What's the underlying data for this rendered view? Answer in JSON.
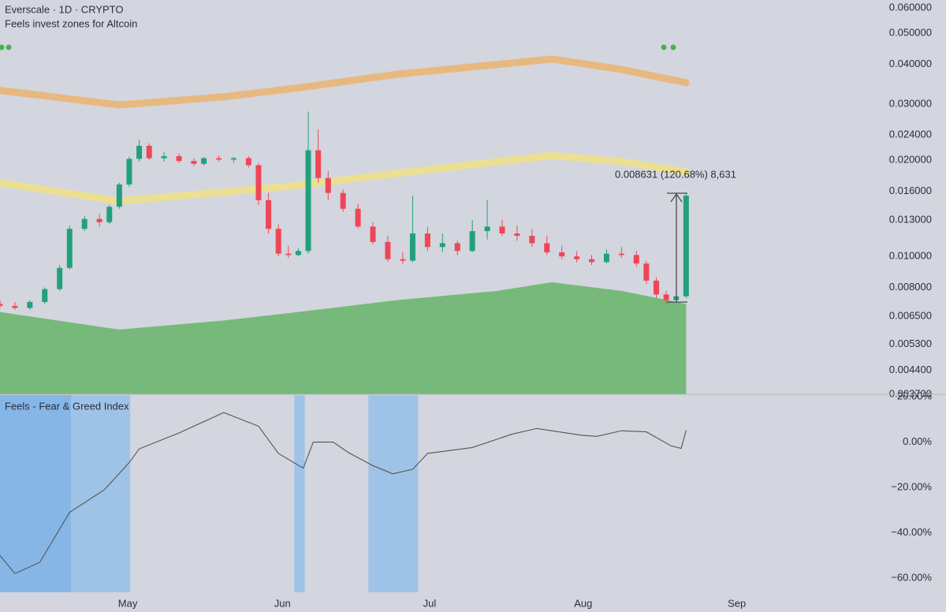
{
  "chart_data": [
    {
      "type": "candlestick",
      "title": "Everscale · 1D · CRYPTO",
      "subtitle": "Feels invest zones for Altcoin",
      "log_scale": true,
      "xlim": [
        0,
        176
      ],
      "ylim": [
        0.0037,
        0.06
      ],
      "yticks": [
        {
          "value": 0.06,
          "label": "0.060000"
        },
        {
          "value": 0.05,
          "label": "0.050000"
        },
        {
          "value": 0.04,
          "label": "0.040000"
        },
        {
          "value": 0.03,
          "label": "0.030000"
        },
        {
          "value": 0.024,
          "label": "0.024000"
        },
        {
          "value": 0.02,
          "label": "0.020000"
        },
        {
          "value": 0.016,
          "label": "0.016000"
        },
        {
          "value": 0.013,
          "label": "0.013000"
        },
        {
          "value": 0.01,
          "label": "0.010000"
        },
        {
          "value": 0.008,
          "label": "0.008000"
        },
        {
          "value": 0.0065,
          "label": "0.006500"
        },
        {
          "value": 0.0053,
          "label": "0.005300"
        },
        {
          "value": 0.0044,
          "label": "0.004400"
        },
        {
          "value": 0.0037,
          "label": "0.003700"
        }
      ],
      "up_color": "#22a07e",
      "down_color": "#ef4657",
      "x": [
        0,
        3,
        6,
        9,
        12,
        14,
        17,
        20,
        22,
        24,
        26,
        28,
        30,
        33,
        36,
        39,
        41,
        44,
        47,
        50,
        52,
        54,
        56,
        58,
        60,
        62,
        64,
        66,
        69,
        72,
        75,
        78,
        81,
        83,
        86,
        89,
        92,
        95,
        98,
        101,
        104,
        107,
        110,
        113,
        116,
        119,
        122,
        125,
        128,
        130,
        132,
        134,
        136,
        138
      ],
      "open": [
        0.0071,
        0.007,
        0.0069,
        0.0072,
        0.0079,
        0.0092,
        0.0122,
        0.0131,
        0.0128,
        0.0143,
        0.0168,
        0.0202,
        0.0222,
        0.0203,
        0.0206,
        0.0199,
        0.0195,
        0.0203,
        0.0201,
        0.0203,
        0.0193,
        0.015,
        0.0122,
        0.0102,
        0.0101,
        0.0104,
        0.0215,
        0.0176,
        0.0158,
        0.0141,
        0.0124,
        0.0111,
        0.0098,
        0.0097,
        0.0118,
        0.0107,
        0.011,
        0.0104,
        0.012,
        0.0124,
        0.0118,
        0.0116,
        0.011,
        0.0103,
        0.01,
        0.0098,
        0.0096,
        0.0102,
        0.0101,
        0.0095,
        0.0084,
        0.0076,
        0.0073,
        0.0075
      ],
      "high": [
        0.0073,
        0.0072,
        0.0073,
        0.008,
        0.0094,
        0.0125,
        0.0134,
        0.0136,
        0.0145,
        0.017,
        0.0205,
        0.0232,
        0.0226,
        0.0212,
        0.021,
        0.0203,
        0.0205,
        0.0207,
        0.0205,
        0.0206,
        0.0196,
        0.0158,
        0.0126,
        0.0108,
        0.0106,
        0.0284,
        0.025,
        0.0185,
        0.0162,
        0.0146,
        0.0128,
        0.0116,
        0.0103,
        0.0155,
        0.0124,
        0.0118,
        0.0112,
        0.013,
        0.015,
        0.013,
        0.0125,
        0.0122,
        0.0116,
        0.0108,
        0.0104,
        0.0101,
        0.0105,
        0.0107,
        0.0104,
        0.0097,
        0.0086,
        0.0078,
        0.0076,
        0.0158
      ],
      "low": [
        0.0069,
        0.0068,
        0.0068,
        0.0071,
        0.0078,
        0.0091,
        0.012,
        0.0124,
        0.0126,
        0.0141,
        0.0165,
        0.0198,
        0.02,
        0.0198,
        0.0196,
        0.0192,
        0.0193,
        0.0198,
        0.0197,
        0.019,
        0.0145,
        0.0118,
        0.01,
        0.0099,
        0.01,
        0.0102,
        0.017,
        0.015,
        0.0138,
        0.0122,
        0.0109,
        0.0096,
        0.0095,
        0.0096,
        0.0104,
        0.0103,
        0.0101,
        0.0103,
        0.0113,
        0.0116,
        0.0112,
        0.0107,
        0.0101,
        0.0098,
        0.0096,
        0.0094,
        0.0095,
        0.0099,
        0.0093,
        0.0082,
        0.0074,
        0.0071,
        0.0072,
        0.0074
      ],
      "close": [
        0.007,
        0.0069,
        0.0072,
        0.0079,
        0.0092,
        0.0122,
        0.0131,
        0.0128,
        0.0143,
        0.0168,
        0.0202,
        0.0222,
        0.0203,
        0.0206,
        0.0199,
        0.0195,
        0.0203,
        0.0201,
        0.0203,
        0.0193,
        0.015,
        0.0122,
        0.0102,
        0.0101,
        0.0104,
        0.0215,
        0.0176,
        0.0158,
        0.0141,
        0.0124,
        0.0111,
        0.0098,
        0.0097,
        0.0118,
        0.0107,
        0.011,
        0.0104,
        0.012,
        0.0124,
        0.0118,
        0.0116,
        0.011,
        0.0103,
        0.01,
        0.0098,
        0.0096,
        0.0102,
        0.0101,
        0.0095,
        0.0084,
        0.0076,
        0.0073,
        0.0075,
        0.0155
      ],
      "band_x": [
        0,
        24,
        45,
        60,
        80,
        100,
        111,
        125,
        138
      ],
      "bands": [
        {
          "color": "#e9b676",
          "values": [
            0.0331,
            0.0298,
            0.0316,
            0.0337,
            0.0372,
            0.0399,
            0.0415,
            0.0385,
            0.035
          ]
        },
        {
          "color": "#f0e08a",
          "values": [
            0.017,
            0.0149,
            0.0159,
            0.0167,
            0.0182,
            0.0198,
            0.0207,
            0.0198,
            0.0184
          ]
        }
      ],
      "area": {
        "color": "#76b97a",
        "values": [
          0.0067,
          0.0059,
          0.0063,
          0.0067,
          0.0073,
          0.0078,
          0.0083,
          0.0078,
          0.0071
        ]
      },
      "annotation": "0.008631 (120.68%) 8,631"
    },
    {
      "type": "line",
      "title": "Feels - Fear & Greed Index",
      "color": "#555555",
      "xlim": [
        0,
        176
      ],
      "xticks": [
        {
          "value": 25.7,
          "label": "May"
        },
        {
          "value": 56.8,
          "label": "Jun"
        },
        {
          "value": 86.4,
          "label": "Jul"
        },
        {
          "value": 117.3,
          "label": "Aug"
        },
        {
          "value": 148.2,
          "label": "Sep"
        }
      ],
      "ylim": [
        -65,
        20
      ],
      "yticks": [
        {
          "value": 20,
          "label": "20.00%"
        },
        {
          "value": 0,
          "label": "0.00%"
        },
        {
          "value": -20,
          "label": "−20.00%"
        },
        {
          "value": -40,
          "label": "−40.00%"
        },
        {
          "value": -60,
          "label": "−60.00%"
        }
      ],
      "x": [
        0,
        3,
        8,
        14,
        21,
        26,
        28,
        36,
        45,
        52,
        56,
        61,
        63,
        67,
        70,
        75,
        79,
        83,
        86,
        95,
        103,
        108,
        117,
        120,
        125,
        130,
        135,
        137,
        138
      ],
      "values": [
        -50,
        -58,
        -53,
        -31,
        -21,
        -9,
        -3,
        4,
        13,
        7,
        -5,
        -11.5,
        0,
        0,
        -4.5,
        -10.4,
        -14,
        -12,
        -5,
        -2.4,
        3.5,
        6,
        3,
        2.5,
        5,
        4.5,
        -1.7,
        -2.8,
        5.2
      ],
      "zones": [
        {
          "start": 0,
          "end": 14.3,
          "color": "#86b6e6"
        },
        {
          "start": 14.3,
          "end": 26.2,
          "color": "#9fc3e6"
        },
        {
          "start": 59.2,
          "end": 61.3,
          "color": "#9fc3e6"
        },
        {
          "start": 74.1,
          "end": 84.1,
          "color": "#9fc3e6"
        }
      ]
    }
  ]
}
